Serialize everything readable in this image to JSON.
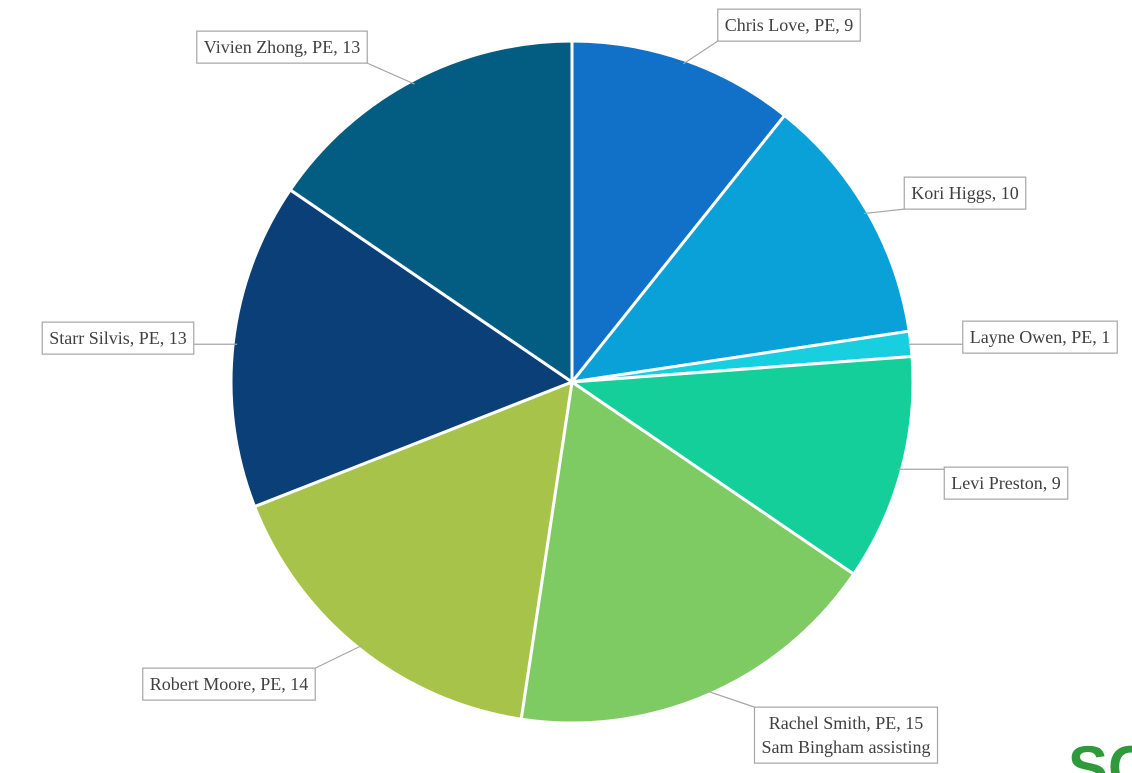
{
  "chart_data": {
    "type": "pie",
    "values": [
      9,
      10,
      1,
      9,
      15,
      14,
      13,
      13
    ],
    "value_labels": [
      "Chris Love, PE, 9",
      "Kori Higgs, 10",
      "Layne Owen, PE, 1",
      "Levi Preston, 9",
      "Rachel Smith, PE, 15",
      "Robert Moore, PE, 14",
      "Starr Silvis, PE, 13",
      "Vivien Zhong, PE, 13"
    ],
    "colors": [
      "#1170c8",
      "#0aa0d8",
      "#18cfe0",
      "#14cf9a",
      "#7ecb64",
      "#a8c34a",
      "#0b3f78",
      "#035c82"
    ],
    "annotations": [
      "Sam Bingham assisting"
    ],
    "logo_text": "SC"
  }
}
